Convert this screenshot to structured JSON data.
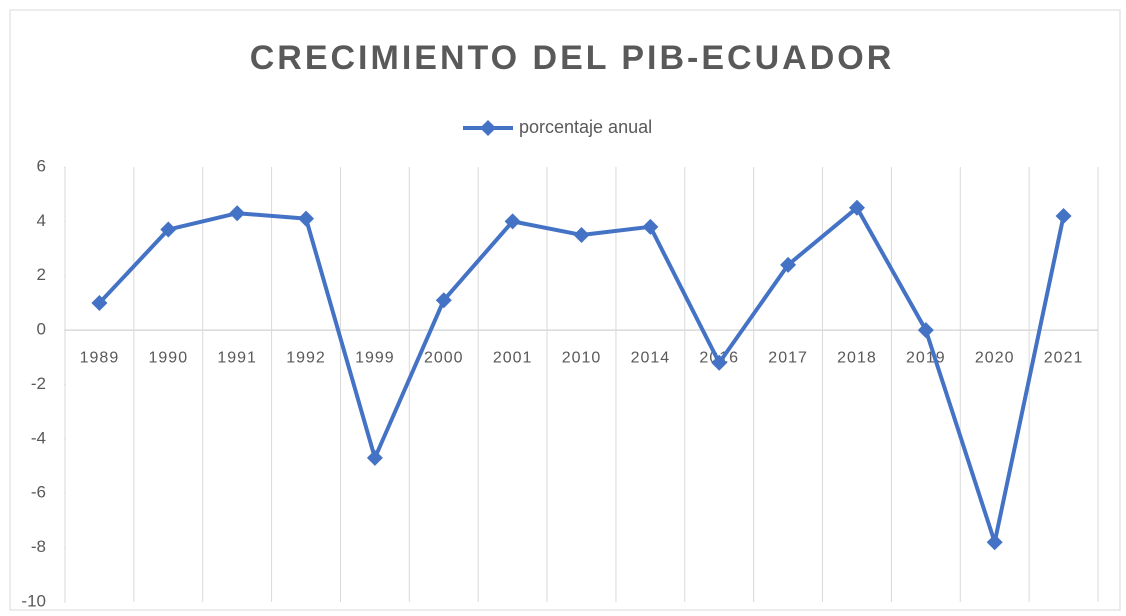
{
  "chart_data": {
    "type": "line",
    "title": "CRECIMIENTO DEL PIB-ECUADOR",
    "categories": [
      "1989",
      "1990",
      "1991",
      "1992",
      "1999",
      "2000",
      "2001",
      "2010",
      "2014",
      "2016",
      "2017",
      "2018",
      "2019",
      "2020",
      "2021"
    ],
    "series": [
      {
        "name": "porcentaje anual",
        "color": "#4472c4",
        "values": [
          1.0,
          3.7,
          4.3,
          4.1,
          -4.7,
          1.1,
          4.0,
          3.5,
          3.8,
          -1.2,
          2.4,
          4.5,
          0,
          -7.8,
          4.2
        ]
      }
    ],
    "ylim": [
      -10,
      6
    ],
    "yticks": [
      -10,
      -8,
      -6,
      -4,
      -2,
      0,
      2,
      4,
      6
    ],
    "grid": "x",
    "legend": "top"
  }
}
